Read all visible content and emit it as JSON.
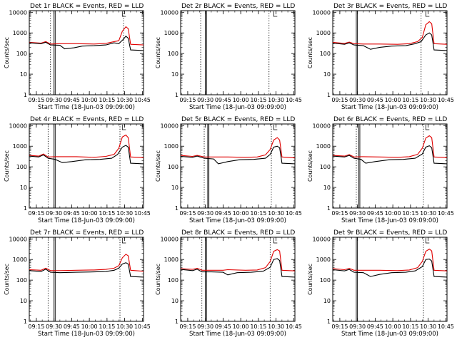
{
  "figure": {
    "title_suffix": "BLACK = Events, RED = LLD",
    "xlabel": "Start Time (18-Jun-03 09:09:00)",
    "ylabel": "Counts/sec",
    "colors": {
      "events": "#000000",
      "lld": "#e00000",
      "axes": "#000000"
    }
  },
  "chart_data": {
    "type": "line",
    "yscale": "log",
    "ylim": [
      1,
      12000
    ],
    "xlim_minutes": [
      0,
      97
    ],
    "x_tick_labels": [
      "09:15",
      "09:30",
      "09:45",
      "10:00",
      "10:15",
      "10:30",
      "10:45"
    ],
    "x_tick_minutes": [
      6,
      21,
      36,
      51,
      66,
      81,
      96
    ],
    "y_tick_labels": [
      "1",
      "10",
      "100",
      "1000",
      "10000"
    ],
    "y_tick_values": [
      1,
      10,
      100,
      1000,
      10000
    ],
    "panels": [
      {
        "label": "Det 1r",
        "events": [
          [
            0,
            330
          ],
          [
            10,
            300
          ],
          [
            14,
            350
          ],
          [
            18,
            260
          ],
          [
            26,
            250
          ],
          [
            30,
            170
          ],
          [
            38,
            190
          ],
          [
            45,
            230
          ],
          [
            55,
            240
          ],
          [
            65,
            260
          ],
          [
            72,
            330
          ],
          [
            76,
            300
          ],
          [
            80,
            500
          ],
          [
            82,
            700
          ],
          [
            84,
            550
          ],
          [
            86,
            150
          ],
          [
            97,
            140
          ]
        ],
        "lld": [
          [
            0,
            350
          ],
          [
            10,
            320
          ],
          [
            14,
            380
          ],
          [
            18,
            290
          ],
          [
            26,
            300
          ],
          [
            40,
            300
          ],
          [
            55,
            290
          ],
          [
            65,
            310
          ],
          [
            72,
            380
          ],
          [
            76,
            420
          ],
          [
            79,
            1200
          ],
          [
            82,
            2000
          ],
          [
            84,
            1600
          ],
          [
            86,
            280
          ],
          [
            97,
            260
          ]
        ],
        "markers": [
          {
            "x": 18,
            "style": "dotted"
          },
          {
            "x": 21,
            "style": "solid"
          },
          {
            "x": 22,
            "style": "solid"
          },
          {
            "x": 80,
            "style": "dotted"
          }
        ]
      },
      {
        "label": "Det 2r",
        "events": [],
        "lld": [],
        "markers": [
          {
            "x": 17,
            "style": "dotted"
          },
          {
            "x": 21,
            "style": "solid"
          },
          {
            "x": 22,
            "style": "solid"
          },
          {
            "x": 75,
            "style": "dotted"
          }
        ]
      },
      {
        "label": "Det 3r",
        "events": [
          [
            0,
            320
          ],
          [
            10,
            280
          ],
          [
            14,
            330
          ],
          [
            18,
            260
          ],
          [
            26,
            240
          ],
          [
            32,
            160
          ],
          [
            40,
            200
          ],
          [
            50,
            230
          ],
          [
            62,
            240
          ],
          [
            70,
            300
          ],
          [
            75,
            380
          ],
          [
            79,
            800
          ],
          [
            82,
            1000
          ],
          [
            84,
            800
          ],
          [
            86,
            150
          ],
          [
            97,
            140
          ]
        ],
        "lld": [
          [
            0,
            350
          ],
          [
            10,
            310
          ],
          [
            14,
            360
          ],
          [
            18,
            300
          ],
          [
            26,
            290
          ],
          [
            40,
            290
          ],
          [
            55,
            280
          ],
          [
            65,
            300
          ],
          [
            72,
            380
          ],
          [
            76,
            600
          ],
          [
            79,
            2500
          ],
          [
            82,
            3500
          ],
          [
            84,
            2800
          ],
          [
            86,
            300
          ],
          [
            97,
            280
          ]
        ],
        "markers": [
          {
            "x": 20,
            "style": "solid"
          },
          {
            "x": 21,
            "style": "solid"
          },
          {
            "x": 75,
            "style": "dotted"
          }
        ]
      },
      {
        "label": "Det 4r",
        "events": [
          [
            0,
            330
          ],
          [
            8,
            300
          ],
          [
            12,
            380
          ],
          [
            16,
            260
          ],
          [
            22,
            230
          ],
          [
            28,
            160
          ],
          [
            36,
            180
          ],
          [
            48,
            220
          ],
          [
            60,
            230
          ],
          [
            70,
            260
          ],
          [
            75,
            400
          ],
          [
            79,
            900
          ],
          [
            82,
            1100
          ],
          [
            84,
            900
          ],
          [
            86,
            150
          ],
          [
            97,
            140
          ]
        ],
        "lld": [
          [
            0,
            360
          ],
          [
            8,
            330
          ],
          [
            12,
            420
          ],
          [
            16,
            300
          ],
          [
            22,
            310
          ],
          [
            40,
            310
          ],
          [
            55,
            290
          ],
          [
            65,
            320
          ],
          [
            72,
            400
          ],
          [
            76,
            800
          ],
          [
            79,
            2800
          ],
          [
            82,
            3500
          ],
          [
            84,
            2600
          ],
          [
            86,
            300
          ],
          [
            97,
            280
          ]
        ],
        "markers": [
          {
            "x": 16,
            "style": "dotted"
          },
          {
            "x": 21,
            "style": "solid"
          },
          {
            "x": 22,
            "style": "solid"
          },
          {
            "x": 77,
            "style": "dotted"
          }
        ]
      },
      {
        "label": "Det 5r",
        "events": [
          [
            0,
            320
          ],
          [
            10,
            290
          ],
          [
            14,
            330
          ],
          [
            20,
            260
          ],
          [
            28,
            240
          ],
          [
            32,
            140
          ],
          [
            40,
            180
          ],
          [
            50,
            220
          ],
          [
            62,
            230
          ],
          [
            72,
            260
          ],
          [
            76,
            400
          ],
          [
            79,
            900
          ],
          [
            82,
            1000
          ],
          [
            84,
            850
          ],
          [
            86,
            150
          ],
          [
            97,
            140
          ]
        ],
        "lld": [
          [
            0,
            360
          ],
          [
            10,
            320
          ],
          [
            14,
            360
          ],
          [
            20,
            300
          ],
          [
            28,
            300
          ],
          [
            40,
            300
          ],
          [
            55,
            290
          ],
          [
            65,
            300
          ],
          [
            72,
            380
          ],
          [
            76,
            700
          ],
          [
            79,
            2000
          ],
          [
            82,
            2600
          ],
          [
            84,
            2000
          ],
          [
            86,
            300
          ],
          [
            97,
            270
          ]
        ],
        "markers": [
          {
            "x": 20,
            "style": "dotted"
          },
          {
            "x": 23,
            "style": "solid"
          },
          {
            "x": 24,
            "style": "solid"
          },
          {
            "x": 77,
            "style": "dotted"
          }
        ]
      },
      {
        "label": "Det 6r",
        "events": [
          [
            0,
            330
          ],
          [
            10,
            300
          ],
          [
            14,
            360
          ],
          [
            18,
            260
          ],
          [
            24,
            230
          ],
          [
            28,
            150
          ],
          [
            36,
            180
          ],
          [
            48,
            220
          ],
          [
            60,
            230
          ],
          [
            70,
            260
          ],
          [
            76,
            420
          ],
          [
            79,
            900
          ],
          [
            82,
            1050
          ],
          [
            84,
            850
          ],
          [
            86,
            150
          ],
          [
            97,
            140
          ]
        ],
        "lld": [
          [
            0,
            360
          ],
          [
            10,
            330
          ],
          [
            14,
            390
          ],
          [
            18,
            300
          ],
          [
            24,
            310
          ],
          [
            40,
            300
          ],
          [
            55,
            290
          ],
          [
            65,
            310
          ],
          [
            72,
            400
          ],
          [
            76,
            800
          ],
          [
            79,
            2500
          ],
          [
            82,
            3200
          ],
          [
            84,
            2600
          ],
          [
            86,
            300
          ],
          [
            97,
            280
          ]
        ],
        "markers": [
          {
            "x": 20,
            "style": "dotted"
          },
          {
            "x": 22,
            "style": "solid"
          },
          {
            "x": 23,
            "style": "solid"
          },
          {
            "x": 77,
            "style": "dotted"
          }
        ]
      },
      {
        "label": "Det 7r",
        "events": [
          [
            0,
            290
          ],
          [
            10,
            260
          ],
          [
            14,
            340
          ],
          [
            18,
            240
          ],
          [
            26,
            230
          ],
          [
            40,
            240
          ],
          [
            55,
            250
          ],
          [
            65,
            260
          ],
          [
            72,
            300
          ],
          [
            76,
            380
          ],
          [
            79,
            600
          ],
          [
            82,
            700
          ],
          [
            84,
            600
          ],
          [
            86,
            150
          ],
          [
            97,
            140
          ]
        ],
        "lld": [
          [
            0,
            320
          ],
          [
            10,
            300
          ],
          [
            14,
            380
          ],
          [
            18,
            290
          ],
          [
            26,
            290
          ],
          [
            40,
            300
          ],
          [
            55,
            310
          ],
          [
            65,
            330
          ],
          [
            72,
            380
          ],
          [
            76,
            500
          ],
          [
            79,
            1200
          ],
          [
            82,
            1800
          ],
          [
            84,
            1500
          ],
          [
            86,
            300
          ],
          [
            97,
            270
          ]
        ],
        "markers": [
          {
            "x": 16,
            "style": "dotted"
          },
          {
            "x": 21,
            "style": "solid"
          },
          {
            "x": 22,
            "style": "solid"
          },
          {
            "x": 77,
            "style": "dotted"
          }
        ]
      },
      {
        "label": "Det 8r",
        "events": [
          [
            0,
            330
          ],
          [
            10,
            290
          ],
          [
            14,
            340
          ],
          [
            18,
            250
          ],
          [
            26,
            250
          ],
          [
            36,
            240
          ],
          [
            40,
            180
          ],
          [
            48,
            230
          ],
          [
            60,
            240
          ],
          [
            70,
            270
          ],
          [
            76,
            420
          ],
          [
            79,
            1000
          ],
          [
            82,
            1100
          ],
          [
            84,
            900
          ],
          [
            86,
            150
          ],
          [
            97,
            140
          ]
        ],
        "lld": [
          [
            0,
            360
          ],
          [
            10,
            330
          ],
          [
            14,
            380
          ],
          [
            18,
            300
          ],
          [
            26,
            300
          ],
          [
            36,
            300
          ],
          [
            40,
            320
          ],
          [
            55,
            300
          ],
          [
            65,
            310
          ],
          [
            72,
            400
          ],
          [
            76,
            800
          ],
          [
            79,
            2500
          ],
          [
            82,
            3000
          ],
          [
            84,
            2600
          ],
          [
            86,
            300
          ],
          [
            97,
            280
          ]
        ],
        "markers": [
          {
            "x": 18,
            "style": "dotted"
          },
          {
            "x": 21,
            "style": "solid"
          },
          {
            "x": 22,
            "style": "solid"
          },
          {
            "x": 76,
            "style": "dotted"
          }
        ]
      },
      {
        "label": "Det 9r",
        "events": [
          [
            0,
            320
          ],
          [
            10,
            280
          ],
          [
            14,
            330
          ],
          [
            18,
            240
          ],
          [
            26,
            230
          ],
          [
            32,
            150
          ],
          [
            40,
            190
          ],
          [
            50,
            230
          ],
          [
            62,
            240
          ],
          [
            70,
            280
          ],
          [
            76,
            450
          ],
          [
            79,
            1000
          ],
          [
            82,
            1050
          ],
          [
            84,
            850
          ],
          [
            86,
            150
          ],
          [
            97,
            140
          ]
        ],
        "lld": [
          [
            0,
            360
          ],
          [
            10,
            320
          ],
          [
            14,
            370
          ],
          [
            18,
            300
          ],
          [
            26,
            300
          ],
          [
            40,
            300
          ],
          [
            55,
            290
          ],
          [
            65,
            310
          ],
          [
            72,
            400
          ],
          [
            76,
            800
          ],
          [
            79,
            2500
          ],
          [
            82,
            3200
          ],
          [
            84,
            2600
          ],
          [
            86,
            300
          ],
          [
            97,
            280
          ]
        ],
        "markers": [
          {
            "x": 20,
            "style": "solid"
          },
          {
            "x": 21,
            "style": "solid"
          },
          {
            "x": 77,
            "style": "dotted"
          }
        ]
      }
    ]
  }
}
